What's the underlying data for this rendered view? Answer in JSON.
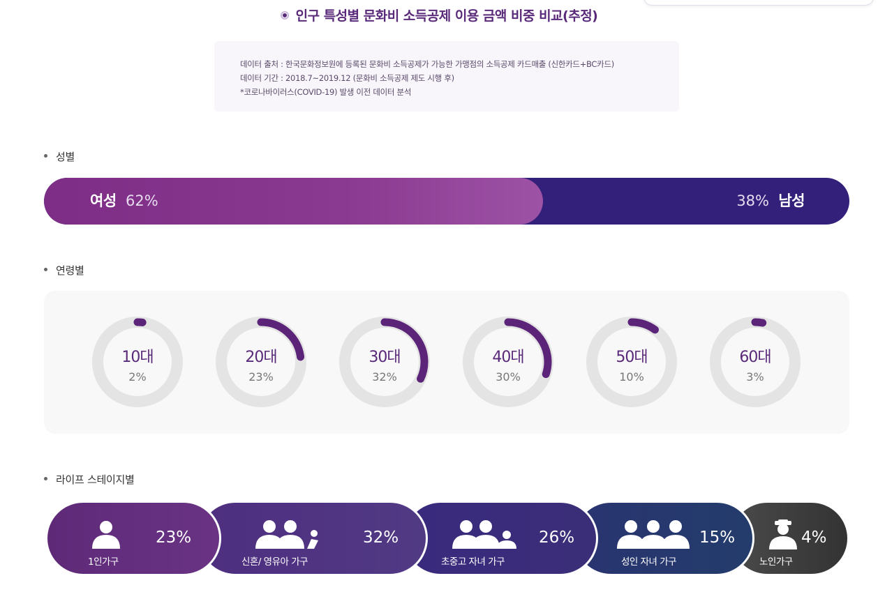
{
  "title": "인구 특성별 문화비 소득공제 이용 금액 비중 비교(추정)",
  "source": {
    "line1": "데이터 출처 : 한국문화정보원에 등록된 문화비 소득공제가 가능한 가맹점의 소득공제 카드매출 (신한카드+BC카드)",
    "line2": "데이터 기간 : 2018.7~2019.12 (문화비 소득공제 제도 시행 후)",
    "line3": "*코로나바이러스(COVID-19) 발생 이전 데이터 분석"
  },
  "sections": {
    "gender": "성별",
    "age": "연령별",
    "life": "라이프 스테이지별"
  },
  "colors": {
    "accent": "#5a2a7a",
    "female": "#8a3a90",
    "male": "#33207a",
    "ring_track": "#e4e4e4",
    "ring_arc": "#5b2479"
  },
  "chart_data": [
    {
      "type": "bar",
      "title": "성별",
      "categories": [
        "여성",
        "남성"
      ],
      "values": [
        62,
        38
      ],
      "value_labels": [
        "62%",
        "38%"
      ],
      "unit": "%"
    },
    {
      "type": "pie",
      "title": "연령별",
      "categories": [
        "10대",
        "20대",
        "30대",
        "40대",
        "50대",
        "60대"
      ],
      "values": [
        2,
        23,
        32,
        30,
        10,
        3
      ],
      "value_labels": [
        "2%",
        "23%",
        "32%",
        "30%",
        "10%",
        "3%"
      ],
      "unit": "%"
    },
    {
      "type": "bar",
      "title": "라이프 스테이지별",
      "categories": [
        "1인가구",
        "신혼/ 영유아 가구",
        "초중고 자녀 가구",
        "성인 자녀 가구",
        "노인가구"
      ],
      "values": [
        23,
        32,
        26,
        15,
        4
      ],
      "value_labels": [
        "23%",
        "32%",
        "26%",
        "15%",
        "4%"
      ],
      "icons": [
        "single-person-icon",
        "couple-with-baby-icon",
        "family-with-child-icon",
        "three-adults-icon",
        "elderly-person-icon"
      ],
      "unit": "%"
    }
  ]
}
